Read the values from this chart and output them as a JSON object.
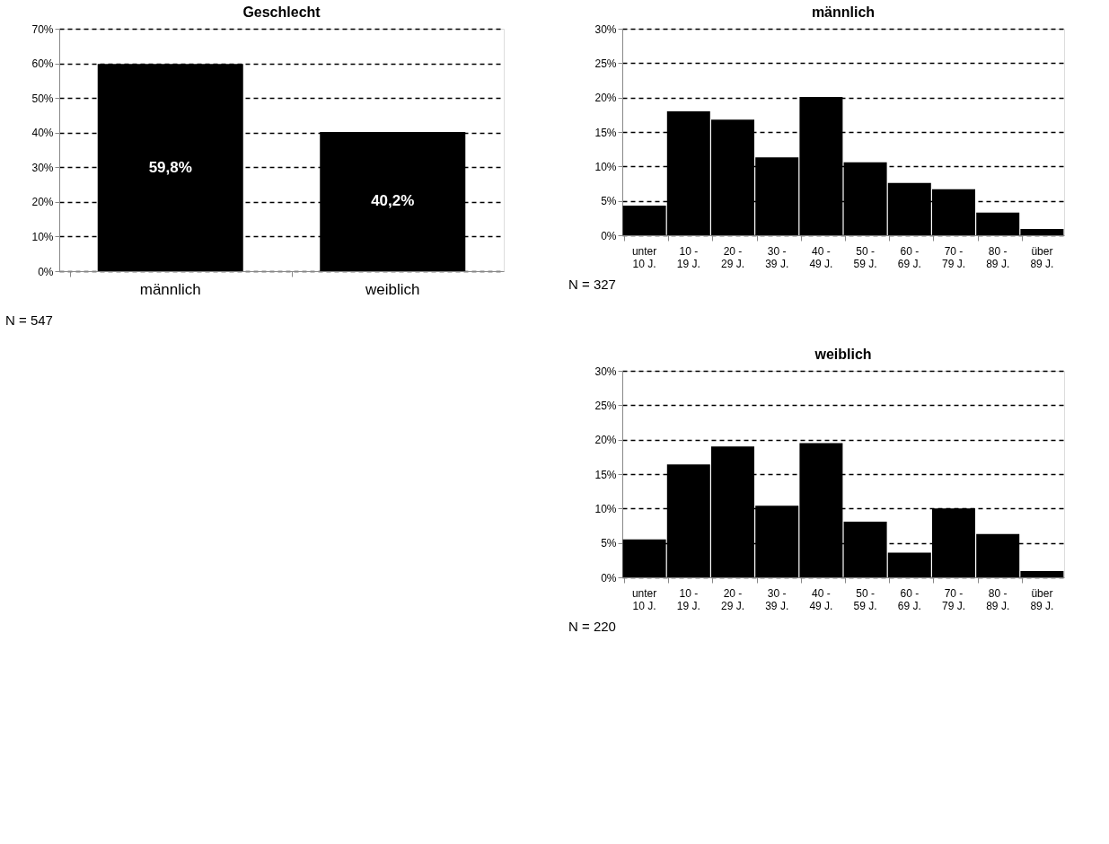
{
  "chart_data": [
    {
      "type": "bar",
      "title": "Geschlecht",
      "categories": [
        "männlich",
        "weiblich"
      ],
      "values": [
        59.8,
        40.2
      ],
      "color": "#000000",
      "value_labels": [
        "59,8%",
        "40,2%"
      ],
      "ylim": [
        0,
        70
      ],
      "yticks": [
        {
          "value": 0,
          "label": "0%"
        },
        {
          "value": 10,
          "label": "10%"
        },
        {
          "value": 20,
          "label": "20%"
        },
        {
          "value": 30,
          "label": "30%"
        },
        {
          "value": 40,
          "label": "40%"
        },
        {
          "value": 50,
          "label": "50%"
        },
        {
          "value": 60,
          "label": "60%"
        },
        {
          "value": 70,
          "label": "70%"
        }
      ],
      "grid": "y",
      "annotations": [
        "N = 547"
      ]
    },
    {
      "type": "bar",
      "title": "männlich",
      "categories": [
        "unter\n10 J.",
        "10 -\n19 J.",
        "20 -\n29 J.",
        "30 -\n39 J.",
        "40 -\n49 J.",
        "50 -\n59 J.",
        "60 -\n69 J.",
        "70 -\n79 J.",
        "80 -\n89 J.",
        "über\n89 J."
      ],
      "values": [
        4.3,
        18.0,
        16.8,
        11.3,
        20.1,
        10.6,
        7.6,
        6.7,
        3.3,
        0.9
      ],
      "color": "#000000",
      "ylim": [
        0,
        30
      ],
      "yticks": [
        {
          "value": 0,
          "label": "0%"
        },
        {
          "value": 5,
          "label": "5%"
        },
        {
          "value": 10,
          "label": "10%"
        },
        {
          "value": 15,
          "label": "15%"
        },
        {
          "value": 20,
          "label": "20%"
        },
        {
          "value": 25,
          "label": "25%"
        },
        {
          "value": 30,
          "label": "30%"
        }
      ],
      "grid": "y",
      "annotations": [
        "N = 327"
      ]
    },
    {
      "type": "bar",
      "title": "weiblich",
      "categories": [
        "unter\n10 J.",
        "10 -\n19 J.",
        "20 -\n29 J.",
        "30 -\n39 J.",
        "40 -\n49 J.",
        "50 -\n59 J.",
        "60 -\n69 J.",
        "70 -\n79 J.",
        "80 -\n89 J.",
        "über\n89 J."
      ],
      "values": [
        5.5,
        16.4,
        19.0,
        10.4,
        19.5,
        8.1,
        3.6,
        10.0,
        6.3,
        0.9
      ],
      "color": "#000000",
      "ylim": [
        0,
        30
      ],
      "yticks": [
        {
          "value": 0,
          "label": "0%"
        },
        {
          "value": 5,
          "label": "5%"
        },
        {
          "value": 10,
          "label": "10%"
        },
        {
          "value": 15,
          "label": "15%"
        },
        {
          "value": 20,
          "label": "20%"
        },
        {
          "value": 25,
          "label": "25%"
        },
        {
          "value": 30,
          "label": "30%"
        }
      ],
      "grid": "y",
      "annotations": [
        "N = 220"
      ]
    }
  ]
}
